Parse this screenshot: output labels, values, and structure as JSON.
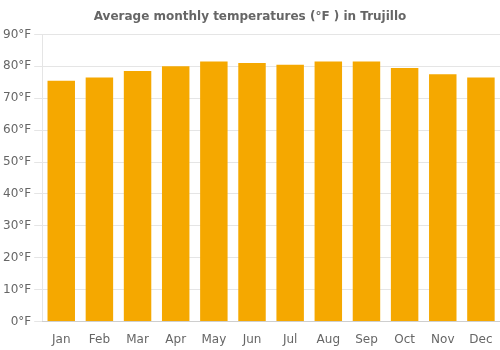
{
  "chart_data": {
    "type": "bar",
    "title": "Average monthly temperatures (°F ) in Trujillo",
    "categories": [
      "Jan",
      "Feb",
      "Mar",
      "Apr",
      "May",
      "Jun",
      "Jul",
      "Aug",
      "Sep",
      "Oct",
      "Nov",
      "Dec"
    ],
    "values": [
      75.5,
      76.5,
      78.5,
      80.0,
      81.5,
      81.0,
      80.5,
      81.5,
      81.5,
      79.5,
      77.5,
      76.5
    ],
    "color": "#F5A800",
    "ylim": [
      0,
      90
    ],
    "yticks": [
      {
        "value": 0,
        "label": "0°F"
      },
      {
        "value": 10,
        "label": "10°F"
      },
      {
        "value": 20,
        "label": "20°F"
      },
      {
        "value": 30,
        "label": "30°F"
      },
      {
        "value": 40,
        "label": "40°F"
      },
      {
        "value": 50,
        "label": "50°F"
      },
      {
        "value": 60,
        "label": "60°F"
      },
      {
        "value": 70,
        "label": "70°F"
      },
      {
        "value": 80,
        "label": "80°F"
      },
      {
        "value": 90,
        "label": "90°F"
      }
    ],
    "grid": true
  }
}
